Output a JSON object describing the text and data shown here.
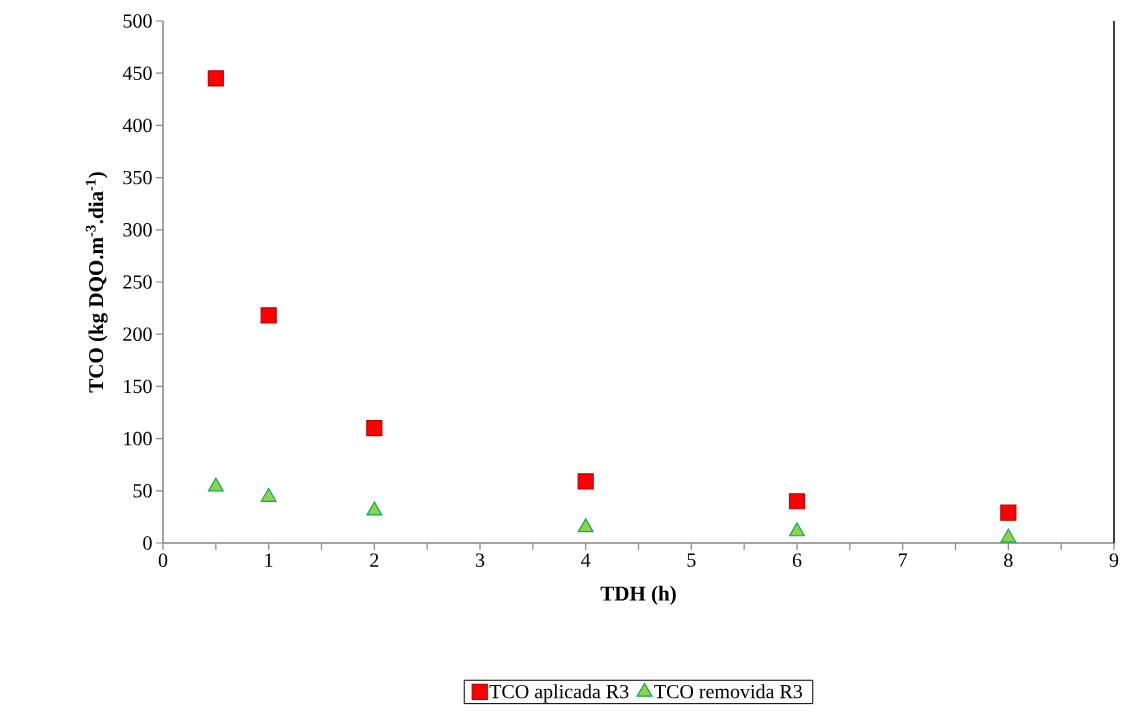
{
  "chart_data": {
    "type": "scatter",
    "xlabel": "TDH (h)",
    "ylabel": "TCO (kg DQO.m$^{-3}$.dia$^{-1}$)",
    "x": [
      0.5,
      1,
      2,
      4,
      6,
      8
    ],
    "series": [
      {
        "name": "TCO aplicada R3",
        "color": "#ff0000",
        "marker": "square",
        "values": [
          445,
          218,
          110,
          59,
          40,
          29
        ]
      },
      {
        "name": "TCO removida R3",
        "color": "#92d050",
        "marker": "triangle",
        "values": [
          54,
          44,
          31,
          15,
          11,
          5
        ]
      }
    ],
    "xlim": [
      0,
      9
    ],
    "xticks": [
      0,
      1,
      2,
      3,
      4,
      5,
      6,
      7,
      8,
      9
    ],
    "ylim": [
      0,
      500
    ],
    "yticks": [
      0,
      50,
      100,
      150,
      200,
      250,
      300,
      350,
      400,
      450,
      500
    ],
    "grid": false,
    "legend": "bottom"
  }
}
